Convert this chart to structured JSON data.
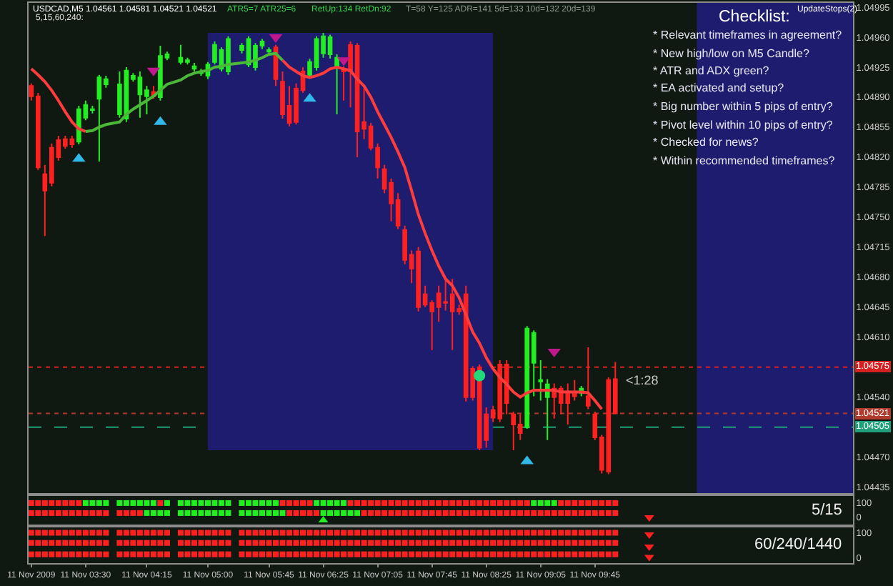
{
  "chart_data": [
    {
      "type": "candlestick",
      "title": "USDCAD,M5 1.04561 1.04581 1.04521 1.04521",
      "annotations": [
        "ATR5=7 ATR25=6",
        "RetUp:134 RetDn:92",
        "T=58 Y=125 ADR=141 5d=133 10d=132 20d=139",
        "5,15,60,240:",
        "Checklist:",
        "UpdateStops(2)",
        "* Relevant timeframes in agreement?",
        "* New high/low on M5 Candle?",
        "* ATR and ADX green?",
        "* EA activated and setup?",
        "* Big number within 5 pips of entry?",
        "* Pivot level within 10 pips of entry?",
        "* Checked for news?",
        "* Within recommended timeframes?",
        "<1:28"
      ],
      "x": [
        "2009-11-11T02:50",
        "2009-11-11T02:55",
        "2009-11-11T03:00",
        "2009-11-11T03:05",
        "2009-11-11T03:10",
        "2009-11-11T03:15",
        "2009-11-11T03:20",
        "2009-11-11T03:25",
        "2009-11-11T03:30",
        "2009-11-11T03:35",
        "2009-11-11T03:40",
        "2009-11-11T03:45",
        "2009-11-11T03:55",
        "2009-11-11T04:00",
        "2009-11-11T04:05",
        "2009-11-11T04:10",
        "2009-11-11T04:15",
        "2009-11-11T04:20",
        "2009-11-11T04:25",
        "2009-11-11T04:30",
        "2009-11-11T04:40",
        "2009-11-11T04:45",
        "2009-11-11T04:50",
        "2009-11-11T04:55",
        "2009-11-11T05:00",
        "2009-11-11T05:05",
        "2009-11-11T05:10",
        "2009-11-11T05:15",
        "2009-11-11T05:25",
        "2009-11-11T05:30",
        "2009-11-11T05:35",
        "2009-11-11T05:40",
        "2009-11-11T05:45",
        "2009-11-11T05:50",
        "2009-11-11T05:55",
        "2009-11-11T06:00",
        "2009-11-11T06:05",
        "2009-11-11T06:10",
        "2009-11-11T06:15",
        "2009-11-11T06:20",
        "2009-11-11T06:25",
        "2009-11-11T06:30",
        "2009-11-11T06:35",
        "2009-11-11T06:40",
        "2009-11-11T06:45",
        "2009-11-11T06:50",
        "2009-11-11T06:55",
        "2009-11-11T07:00",
        "2009-11-11T07:05",
        "2009-11-11T07:10",
        "2009-11-11T07:15",
        "2009-11-11T07:20",
        "2009-11-11T07:25",
        "2009-11-11T07:30",
        "2009-11-11T07:35",
        "2009-11-11T07:40",
        "2009-11-11T07:45",
        "2009-11-11T07:50",
        "2009-11-11T07:55",
        "2009-11-11T08:00",
        "2009-11-11T08:05",
        "2009-11-11T08:10",
        "2009-11-11T08:15",
        "2009-11-11T08:20",
        "2009-11-11T08:25",
        "2009-11-11T08:30",
        "2009-11-11T08:35",
        "2009-11-11T08:40",
        "2009-11-11T08:45",
        "2009-11-11T08:50",
        "2009-11-11T08:55",
        "2009-11-11T09:00",
        "2009-11-11T09:05",
        "2009-11-11T09:10",
        "2009-11-11T09:15",
        "2009-11-11T09:20",
        "2009-11-11T09:25",
        "2009-11-11T09:30",
        "2009-11-11T09:35",
        "2009-11-11T09:40",
        "2009-11-11T09:45",
        "2009-11-11T09:50",
        "2009-11-11T09:55",
        "2009-11-11T10:00"
      ],
      "ohlc": [
        [
          1.04903,
          1.04906,
          1.04886,
          1.04891
        ],
        [
          1.04891,
          1.04895,
          1.04805,
          1.04808
        ],
        [
          1.048,
          1.04811,
          1.04728,
          1.04781
        ],
        [
          1.04831,
          1.04836,
          1.04786,
          1.0479
        ],
        [
          1.0484,
          1.04845,
          1.04816,
          1.0482
        ],
        [
          1.04841,
          1.04845,
          1.0483,
          1.04833
        ],
        [
          1.04841,
          1.04845,
          1.04831,
          1.04835
        ],
        [
          1.04838,
          1.0488,
          1.04835,
          1.04876
        ],
        [
          1.04866,
          1.04886,
          1.04863,
          1.04881
        ],
        [
          1.04875,
          1.0488,
          1.04871,
          1.04876
        ],
        [
          1.04888,
          1.04916,
          1.04815,
          1.04913
        ],
        [
          1.04905,
          1.04915,
          1.04901,
          1.04911
        ],
        [
          1.0487,
          1.0492,
          1.04866,
          1.04905
        ],
        [
          1.04865,
          1.04925,
          1.04861,
          1.04921
        ],
        [
          1.04911,
          1.04918,
          1.04908,
          1.04915
        ],
        [
          1.04893,
          1.0492,
          1.04866,
          1.04913
        ],
        [
          1.04891,
          1.04903,
          1.0487,
          1.04898
        ],
        [
          1.04896,
          1.04903,
          1.04888,
          1.04891
        ],
        [
          1.0489,
          1.0495,
          1.04886,
          1.04938
        ],
        [
          1.04936,
          1.04943,
          1.04933,
          1.0494
        ],
        [
          1.04931,
          1.04951,
          1.04928,
          1.04936
        ],
        [
          1.04931,
          1.04936,
          1.04928,
          1.04933
        ],
        [
          1.04923,
          1.0493,
          1.0492,
          1.04926
        ],
        [
          1.04918,
          1.04923,
          1.04915,
          1.0492
        ],
        [
          1.04915,
          1.04931,
          1.04911,
          1.04928
        ],
        [
          1.04931,
          1.04955,
          1.04928,
          1.04951
        ],
        [
          1.04923,
          1.04948,
          1.0492,
          1.04945
        ],
        [
          1.0492,
          1.04961,
          1.04916,
          1.04958
        ],
        [
          1.04945,
          1.04953,
          1.04941,
          1.0495
        ],
        [
          1.04928,
          1.04961,
          1.04925,
          1.04958
        ],
        [
          1.04925,
          1.04953,
          1.04921,
          1.0495
        ],
        [
          1.0495,
          1.04958,
          1.04946,
          1.04955
        ],
        [
          1.04943,
          1.04948,
          1.0494,
          1.04945
        ],
        [
          1.04948,
          1.04951,
          1.04903,
          1.04911
        ],
        [
          1.04908,
          1.0492,
          1.04865,
          1.0487
        ],
        [
          1.0488,
          1.04903,
          1.04856,
          1.0486
        ],
        [
          1.049,
          1.04906,
          1.04858,
          1.04861
        ],
        [
          1.0492,
          1.04925,
          1.04895,
          1.04898
        ],
        [
          1.04916,
          1.04935,
          1.04913,
          1.04931
        ],
        [
          1.04925,
          1.04961,
          1.04921,
          1.04958
        ],
        [
          1.04941,
          1.04965,
          1.04936,
          1.04961
        ],
        [
          1.0494,
          1.04963,
          1.04935,
          1.0496
        ],
        [
          1.04925,
          1.0494,
          1.0487,
          1.04936
        ],
        [
          1.04923,
          1.04926,
          1.04886,
          1.0492
        ],
        [
          1.04951,
          1.04955,
          1.04878,
          1.0492
        ],
        [
          1.0495,
          1.04953,
          1.0482,
          1.0485
        ],
        [
          1.04861,
          1.049,
          1.04841,
          1.04853
        ],
        [
          1.04856,
          1.0486,
          1.04828,
          1.04831
        ],
        [
          1.04831,
          1.04836,
          1.04795,
          1.04808
        ],
        [
          1.04806,
          1.04811,
          1.04778,
          1.04783
        ],
        [
          1.0479,
          1.04795,
          1.04745,
          1.04766
        ],
        [
          1.0477,
          1.04778,
          1.04736,
          1.0474
        ],
        [
          1.04735,
          1.0474,
          1.04695,
          1.047
        ],
        [
          1.04706,
          1.04711,
          1.04673,
          1.0469
        ],
        [
          1.0471,
          1.04715,
          1.0464,
          1.04645
        ],
        [
          1.0466,
          1.0467,
          1.04645,
          1.04648
        ],
        [
          1.0465,
          1.04653,
          1.04595,
          1.0464
        ],
        [
          1.04661,
          1.0467,
          1.04628,
          1.04645
        ],
        [
          1.04651,
          1.04678,
          1.04641,
          1.0465
        ],
        [
          1.0466,
          1.04678,
          1.04595,
          1.0464
        ],
        [
          1.04643,
          1.04648,
          1.04636,
          1.0464
        ],
        [
          1.0466,
          1.0467,
          1.04535,
          1.0454
        ],
        [
          1.04573,
          1.04576,
          1.04536,
          1.0454
        ],
        [
          1.04575,
          1.04578,
          1.04478,
          1.04481
        ],
        [
          1.0452,
          1.04528,
          1.04481,
          1.0449
        ],
        [
          1.04525,
          1.0453,
          1.04511,
          1.04516
        ],
        [
          1.04578,
          1.04583,
          1.04511,
          1.04515
        ],
        [
          1.04578,
          1.04583,
          1.0452,
          1.04533
        ],
        [
          1.0452,
          1.04523,
          1.04478,
          1.04508
        ],
        [
          1.04508,
          1.0452,
          1.0449,
          1.04498
        ],
        [
          1.04505,
          1.04623,
          1.04503,
          1.0462
        ],
        [
          1.0458,
          1.04618,
          1.04541,
          1.04615
        ],
        [
          1.04558,
          1.04583,
          1.04536,
          1.0456
        ],
        [
          1.0454,
          1.04561,
          1.0449,
          1.04555
        ],
        [
          1.0455,
          1.04556,
          1.04515,
          1.0454
        ],
        [
          1.0455,
          1.04553,
          1.0452,
          1.04533
        ],
        [
          1.04546,
          1.04556,
          1.04508,
          1.04533
        ],
        [
          1.04546,
          1.0456,
          1.04536,
          1.04541
        ],
        [
          1.04545,
          1.04553,
          1.04541,
          1.0455
        ],
        [
          1.04541,
          1.04598,
          1.04526,
          1.0453
        ],
        [
          1.0452,
          1.04523,
          1.0449,
          1.04493
        ],
        [
          1.04493,
          1.04496,
          1.04451,
          1.04455
        ],
        [
          1.0456,
          1.04563,
          1.0445,
          1.04453
        ],
        [
          1.04561,
          1.04581,
          1.04521,
          1.04521
        ]
      ],
      "colors": [
        "#ff2020",
        "#ff2020",
        "#ff2020",
        "#ff2020",
        "#ff2020",
        "#ff2020",
        "#ff2020",
        "#22ee22",
        "#22ee22",
        "#22ee22",
        "#22ee22",
        "#22ee22",
        "#22ee22",
        "#22ee22",
        "#22ee22",
        "#22ee22",
        "#22ee22",
        "#ff2020",
        "#22ee22",
        "#22ee22",
        "#22ee22",
        "#22ee22",
        "#22ee22",
        "#22ee22",
        "#22ee22",
        "#22ee22",
        "#22ee22",
        "#22ee22",
        "#22ee22",
        "#22ee22",
        "#22ee22",
        "#22ee22",
        "#22ee22",
        "#ff2020",
        "#ff2020",
        "#ff2020",
        "#ff2020",
        "#ff2020",
        "#22ee22",
        "#22ee22",
        "#22ee22",
        "#22ee22",
        "#22ee22",
        "#ff2020",
        "#ff2020",
        "#ff2020",
        "#ff2020",
        "#ff2020",
        "#ff2020",
        "#ff2020",
        "#ff2020",
        "#ff2020",
        "#ff2020",
        "#ff2020",
        "#ff2020",
        "#ff2020",
        "#ff2020",
        "#ff2020",
        "#ff2020",
        "#ff2020",
        "#ff2020",
        "#ff2020",
        "#ff2020",
        "#ff2020",
        "#ff2020",
        "#ff2020",
        "#ff2020",
        "#ff2020",
        "#ff2020",
        "#ff2020",
        "#22ee22",
        "#22ee22",
        "#22ee22",
        "#22ee22",
        "#ff2020",
        "#ff2020",
        "#ff2020",
        "#ff2020",
        "#22ee22",
        "#ff2020",
        "#ff2020",
        "#ff2020",
        "#ff2020",
        "#ff2020"
      ],
      "series": [
        {
          "type": "line",
          "color": "#ff3c3c",
          "x": [
            "2009-11-11T02:50",
            "2009-11-11T02:55",
            "2009-11-11T03:00",
            "2009-11-11T03:05",
            "2009-11-11T03:10",
            "2009-11-11T03:15",
            "2009-11-11T03:20",
            "2009-11-11T03:25",
            "2009-11-11T03:30"
          ],
          "values": [
            1.04923,
            1.04916,
            1.04908,
            1.04898,
            1.04886,
            1.04873,
            1.04861,
            1.04853,
            1.0485
          ]
        },
        {
          "type": "line",
          "color": "#4cb83a",
          "x": [
            "2009-11-11T03:30",
            "2009-11-11T03:35",
            "2009-11-11T03:40",
            "2009-11-11T03:45",
            "2009-11-11T03:55",
            "2009-11-11T04:00",
            "2009-11-11T04:05",
            "2009-11-11T04:10",
            "2009-11-11T04:15",
            "2009-11-11T04:20",
            "2009-11-11T04:25",
            "2009-11-11T04:30",
            "2009-11-11T04:40",
            "2009-11-11T04:45",
            "2009-11-11T04:50",
            "2009-11-11T04:55",
            "2009-11-11T05:00",
            "2009-11-11T05:05",
            "2009-11-11T05:10",
            "2009-11-11T05:15",
            "2009-11-11T05:25",
            "2009-11-11T05:30",
            "2009-11-11T05:35",
            "2009-11-11T05:40",
            "2009-11-11T05:45",
            "2009-11-11T05:50",
            "2009-11-11T05:55"
          ],
          "values": [
            1.0485,
            1.04851,
            1.04855,
            1.04858,
            1.04861,
            1.0487,
            1.04876,
            1.04881,
            1.04886,
            1.04891,
            1.04898,
            1.04905,
            1.0491,
            1.04915,
            1.04918,
            1.0492,
            1.04921,
            1.04925,
            1.04926,
            1.04928,
            1.0493,
            1.04931,
            1.04933,
            1.04936,
            1.0494,
            1.04941,
            1.04933
          ]
        },
        {
          "type": "line",
          "color": "#ff3c3c",
          "x": [
            "2009-11-11T05:55",
            "2009-11-11T06:00",
            "2009-11-11T06:05",
            "2009-11-11T06:10",
            "2009-11-11T06:15",
            "2009-11-11T06:20",
            "2009-11-11T06:25",
            "2009-11-11T06:30",
            "2009-11-11T06:35",
            "2009-11-11T06:40",
            "2009-11-11T06:45",
            "2009-11-11T06:50",
            "2009-11-11T06:55",
            "2009-11-11T07:00",
            "2009-11-11T07:05",
            "2009-11-11T07:10",
            "2009-11-11T07:15",
            "2009-11-11T07:20",
            "2009-11-11T07:25",
            "2009-11-11T07:30",
            "2009-11-11T07:35",
            "2009-11-11T07:40",
            "2009-11-11T07:45",
            "2009-11-11T07:50",
            "2009-11-11T07:55",
            "2009-11-11T08:00",
            "2009-11-11T08:05",
            "2009-11-11T08:10",
            "2009-11-11T08:15",
            "2009-11-11T08:20",
            "2009-11-11T08:25",
            "2009-11-11T08:30",
            "2009-11-11T08:35",
            "2009-11-11T08:40",
            "2009-11-11T08:45",
            "2009-11-11T08:50",
            "2009-11-11T08:55",
            "2009-11-11T09:00",
            "2009-11-11T09:05",
            "2009-11-11T09:10",
            "2009-11-11T09:15",
            "2009-11-11T09:20",
            "2009-11-11T09:25",
            "2009-11-11T09:30",
            "2009-11-11T09:35",
            "2009-11-11T09:40",
            "2009-11-11T09:45",
            "2009-11-11T09:50"
          ],
          "values": [
            1.04933,
            1.04925,
            1.0492,
            1.04915,
            1.04913,
            1.04915,
            1.04918,
            1.04923,
            1.04925,
            1.04923,
            1.04921,
            1.04911,
            1.04903,
            1.0489,
            1.04873,
            1.04858,
            1.04843,
            1.04826,
            1.04808,
            1.04781,
            1.04753,
            1.04731,
            1.04711,
            1.04693,
            1.04678,
            1.0467,
            1.04656,
            1.04636,
            1.04616,
            1.04603,
            1.04586,
            1.04573,
            1.04563,
            1.04555,
            1.04546,
            1.0454,
            1.04545,
            1.04548,
            1.04548,
            1.04548,
            1.04548,
            1.04546,
            1.04546,
            1.04546,
            1.04546,
            1.04545,
            1.04536,
            1.04526
          ]
        },
        {
          "type": "scatter",
          "marker": "triangle",
          "color": "#30b8e8",
          "x": [
            "2009-11-11T03:25",
            "2009-11-11T04:25",
            "2009-11-11T06:15",
            "2009-11-11T08:55"
          ],
          "values": [
            1.04818,
            1.04861,
            1.04888,
            1.04465
          ]
        },
        {
          "type": "scatter",
          "marker": "triangle-down",
          "color": "#c0188c",
          "x": [
            "2009-11-11T04:20",
            "2009-11-11T05:50",
            "2009-11-11T06:40",
            "2009-11-11T09:15"
          ],
          "values": [
            1.04921,
            1.0496,
            1.04933,
            1.04593
          ]
        },
        {
          "type": "scatter",
          "marker": "circle",
          "color": "#22d878",
          "x": [
            "2009-11-11T08:20"
          ],
          "values": [
            1.04565
          ]
        }
      ],
      "xlim": [
        "2009-11-11T02:48",
        "2009-11-11T12:55"
      ],
      "ylim": [
        1.04428,
        1.05
      ],
      "yticks": [
        1.04995,
        {
          "value": 1.0496,
          "label": "1.04960"
        },
        1.04925,
        {
          "value": 1.0489,
          "label": "1.04890"
        },
        1.04855,
        {
          "value": 1.0482,
          "label": "1.04820"
        },
        1.04785,
        {
          "value": 1.0475,
          "label": "1.04750"
        },
        1.04715,
        {
          "value": 1.0468,
          "label": "1.04680"
        },
        1.04645,
        {
          "value": 1.0461,
          "label": "1.04610"
        },
        {
          "value": 1.0454,
          "label": "1.04540"
        },
        {
          "value": 1.0447,
          "label": "1.04470"
        },
        1.04435
      ],
      "ref_lines": [
        {
          "axis": "y",
          "value": 1.04575,
          "label": "1.04575",
          "color": "#d42020",
          "line_style": "dotted"
        },
        {
          "axis": "y",
          "value": 1.04521,
          "label": "1.04521",
          "color": "#b03a2e",
          "line_style": "dotted"
        },
        {
          "axis": "y",
          "value": 1.04505,
          "label": "1.04505",
          "color": "#1fa07a",
          "line_style": "dashed"
        }
      ],
      "bands": [
        {
          "axis": "x",
          "from": "2009-11-11T05:00",
          "to": "2009-11-11T08:30",
          "color": "#1e1c6e"
        },
        {
          "axis": "x",
          "from": "2009-11-11T11:00",
          "to": "2009-11-11T12:55",
          "color": "#1e1c6e"
        }
      ],
      "tick_labels": "y"
    },
    {
      "type": "scatter",
      "title": "5/15",
      "marker": "square",
      "x": [
        "2009-11-11T02:50",
        "2009-11-11T02:55",
        "2009-11-11T03:00",
        "2009-11-11T03:05",
        "2009-11-11T03:10",
        "2009-11-11T03:15",
        "2009-11-11T03:20",
        "2009-11-11T03:25",
        "2009-11-11T03:30",
        "2009-11-11T03:35",
        "2009-11-11T03:40",
        "2009-11-11T03:45",
        "2009-11-11T03:55",
        "2009-11-11T04:00",
        "2009-11-11T04:05",
        "2009-11-11T04:10",
        "2009-11-11T04:15",
        "2009-11-11T04:20",
        "2009-11-11T04:25",
        "2009-11-11T04:30",
        "2009-11-11T04:40",
        "2009-11-11T04:45",
        "2009-11-11T04:50",
        "2009-11-11T04:55",
        "2009-11-11T05:00",
        "2009-11-11T05:05",
        "2009-11-11T05:10",
        "2009-11-11T05:15",
        "2009-11-11T05:25",
        "2009-11-11T05:30",
        "2009-11-11T05:35",
        "2009-11-11T05:40",
        "2009-11-11T05:45",
        "2009-11-11T05:50",
        "2009-11-11T05:55",
        "2009-11-11T06:00",
        "2009-11-11T06:05",
        "2009-11-11T06:10",
        "2009-11-11T06:15",
        "2009-11-11T06:20",
        "2009-11-11T06:25",
        "2009-11-11T06:30",
        "2009-11-11T06:35",
        "2009-11-11T06:40",
        "2009-11-11T06:45",
        "2009-11-11T06:50",
        "2009-11-11T06:55",
        "2009-11-11T07:00",
        "2009-11-11T07:05",
        "2009-11-11T07:10",
        "2009-11-11T07:15",
        "2009-11-11T07:20",
        "2009-11-11T07:25",
        "2009-11-11T07:30",
        "2009-11-11T07:35",
        "2009-11-11T07:40",
        "2009-11-11T07:45",
        "2009-11-11T07:50",
        "2009-11-11T07:55",
        "2009-11-11T08:00",
        "2009-11-11T08:05",
        "2009-11-11T08:10",
        "2009-11-11T08:15",
        "2009-11-11T08:20",
        "2009-11-11T08:25",
        "2009-11-11T08:30",
        "2009-11-11T08:35",
        "2009-11-11T08:40",
        "2009-11-11T08:45",
        "2009-11-11T08:50",
        "2009-11-11T08:55",
        "2009-11-11T09:00",
        "2009-11-11T09:05",
        "2009-11-11T09:10",
        "2009-11-11T09:15",
        "2009-11-11T09:20",
        "2009-11-11T09:25",
        "2009-11-11T09:30",
        "2009-11-11T09:35",
        "2009-11-11T09:40",
        "2009-11-11T09:45",
        "2009-11-11T09:50",
        "2009-11-11T09:55",
        "2009-11-11T10:00"
      ],
      "series": [
        {
          "values": [
            100,
            100,
            100,
            100,
            100,
            100,
            100,
            100,
            100,
            100,
            100,
            100,
            100,
            100,
            100,
            100,
            100,
            100,
            100,
            100,
            100,
            100,
            100,
            100,
            100,
            100,
            100,
            100,
            100,
            100,
            100,
            100,
            100,
            100,
            100,
            100,
            100,
            100,
            100,
            100,
            100,
            100,
            100,
            100,
            100,
            100,
            100,
            100,
            100,
            100,
            100,
            100,
            100,
            100,
            100,
            100,
            100,
            100,
            100,
            100,
            100,
            100,
            100,
            100,
            100,
            100,
            100,
            100,
            100,
            100,
            100,
            100,
            100,
            100,
            100,
            100,
            100,
            100,
            100,
            100,
            100,
            100,
            100,
            100
          ],
          "colors": [
            "#ff2020",
            "#ff2020",
            "#ff2020",
            "#ff2020",
            "#ff2020",
            "#ff2020",
            "#ff2020",
            "#ff2020",
            "#22ee22",
            "#22ee22",
            "#22ee22",
            "#22ee22",
            "#22ee22",
            "#22ee22",
            "#22ee22",
            "#22ee22",
            "#22ee22",
            "#22ee22",
            "#ff2020",
            "#22ee22",
            "#22ee22",
            "#22ee22",
            "#22ee22",
            "#22ee22",
            "#22ee22",
            "#22ee22",
            "#22ee22",
            "#22ee22",
            "#22ee22",
            "#22ee22",
            "#22ee22",
            "#22ee22",
            "#22ee22",
            "#22ee22",
            "#ff2020",
            "#ff2020",
            "#ff2020",
            "#ff2020",
            "#ff2020",
            "#22ee22",
            "#22ee22",
            "#22ee22",
            "#22ee22",
            "#22ee22",
            "#ff2020",
            "#ff2020",
            "#ff2020",
            "#ff2020",
            "#ff2020",
            "#ff2020",
            "#ff2020",
            "#ff2020",
            "#ff2020",
            "#ff2020",
            "#ff2020",
            "#ff2020",
            "#ff2020",
            "#ff2020",
            "#ff2020",
            "#ff2020",
            "#ff2020",
            "#ff2020",
            "#ff2020",
            "#ff2020",
            "#ff2020",
            "#ff2020",
            "#ff2020",
            "#ff2020",
            "#ff2020",
            "#ff2020",
            "#ff2020",
            "#22ee22",
            "#22ee22",
            "#22ee22",
            "#22ee22",
            "#ff2020",
            "#ff2020",
            "#ff2020",
            "#ff2020",
            "#ff2020",
            "#ff2020",
            "#ff2020",
            "#ff2020",
            "#ff2020"
          ]
        },
        {
          "values": [
            30,
            30,
            30,
            30,
            30,
            30,
            30,
            30,
            30,
            30,
            30,
            30,
            30,
            30,
            30,
            30,
            30,
            30,
            30,
            30,
            30,
            30,
            30,
            30,
            30,
            30,
            30,
            30,
            30,
            30,
            30,
            30,
            30,
            30,
            30,
            30,
            30,
            30,
            30,
            30,
            30,
            30,
            30,
            30,
            30,
            30,
            30,
            30,
            30,
            30,
            30,
            30,
            30,
            30,
            30,
            30,
            30,
            30,
            30,
            30,
            30,
            30,
            30,
            30,
            30,
            30,
            30,
            30,
            30,
            30,
            30,
            30,
            30,
            30,
            30,
            30,
            30,
            30,
            30,
            30,
            30,
            30,
            30,
            30
          ],
          "colors": [
            "#ff2020",
            "#ff2020",
            "#ff2020",
            "#ff2020",
            "#ff2020",
            "#ff2020",
            "#ff2020",
            "#ff2020",
            "#ff2020",
            "#ff2020",
            "#ff2020",
            "#ff2020",
            "#ff2020",
            "#ff2020",
            "#ff2020",
            "#ff2020",
            "#22ee22",
            "#22ee22",
            "#22ee22",
            "#22ee22",
            "#22ee22",
            "#22ee22",
            "#22ee22",
            "#22ee22",
            "#22ee22",
            "#22ee22",
            "#22ee22",
            "#22ee22",
            "#22ee22",
            "#22ee22",
            "#22ee22",
            "#22ee22",
            "#22ee22",
            "#22ee22",
            "#22ee22",
            "#ff2020",
            "#ff2020",
            "#ff2020",
            "#ff2020",
            "#ff2020",
            "#22ee22",
            "#22ee22",
            "#22ee22",
            "#22ee22",
            "#22ee22",
            "#22ee22",
            "#ff2020",
            "#ff2020",
            "#ff2020",
            "#ff2020",
            "#ff2020",
            "#ff2020",
            "#ff2020",
            "#ff2020",
            "#ff2020",
            "#ff2020",
            "#ff2020",
            "#ff2020",
            "#ff2020",
            "#ff2020",
            "#ff2020",
            "#ff2020",
            "#ff2020",
            "#ff2020",
            "#ff2020",
            "#ff2020",
            "#ff2020",
            "#ff2020",
            "#ff2020",
            "#ff2020",
            "#ff2020",
            "#ff2020",
            "#ff2020",
            "#ff2020",
            "#ff2020",
            "#ff2020",
            "#ff2020",
            "#ff2020",
            "#ff2020",
            "#ff2020",
            "#ff2020",
            "#ff2020",
            "#ff2020",
            "#ff2020"
          ]
        },
        {
          "marker": "triangle-down",
          "color": "#ff2020",
          "x": [
            "2009-11-11T10:25"
          ],
          "values": [
            0
          ]
        },
        {
          "marker": "triangle",
          "color": "#22ee22",
          "x": [
            "2009-11-11T06:25"
          ],
          "values": [
            -20
          ]
        }
      ],
      "xlim": [
        "2009-11-11T02:48",
        "2009-11-11T12:55"
      ],
      "ylim": [
        -50,
        150
      ],
      "yticks": [
        0,
        100
      ],
      "tick_labels": "y"
    },
    {
      "type": "scatter",
      "title": "60/240/1440",
      "marker": "square",
      "x": [
        "2009-11-11T02:50",
        "2009-11-11T02:55",
        "2009-11-11T03:00",
        "2009-11-11T03:05",
        "2009-11-11T03:10",
        "2009-11-11T03:15",
        "2009-11-11T03:20",
        "2009-11-11T03:25",
        "2009-11-11T03:30",
        "2009-11-11T03:35",
        "2009-11-11T03:40",
        "2009-11-11T03:45",
        "2009-11-11T03:55",
        "2009-11-11T04:00",
        "2009-11-11T04:05",
        "2009-11-11T04:10",
        "2009-11-11T04:15",
        "2009-11-11T04:20",
        "2009-11-11T04:25",
        "2009-11-11T04:30",
        "2009-11-11T04:40",
        "2009-11-11T04:45",
        "2009-11-11T04:50",
        "2009-11-11T04:55",
        "2009-11-11T05:00",
        "2009-11-11T05:05",
        "2009-11-11T05:10",
        "2009-11-11T05:15",
        "2009-11-11T05:25",
        "2009-11-11T05:30",
        "2009-11-11T05:35",
        "2009-11-11T05:40",
        "2009-11-11T05:45",
        "2009-11-11T05:50",
        "2009-11-11T05:55",
        "2009-11-11T06:00",
        "2009-11-11T06:05",
        "2009-11-11T06:10",
        "2009-11-11T06:15",
        "2009-11-11T06:20",
        "2009-11-11T06:25",
        "2009-11-11T06:30",
        "2009-11-11T06:35",
        "2009-11-11T06:40",
        "2009-11-11T06:45",
        "2009-11-11T06:50",
        "2009-11-11T06:55",
        "2009-11-11T07:00",
        "2009-11-11T07:05",
        "2009-11-11T07:10",
        "2009-11-11T07:15",
        "2009-11-11T07:20",
        "2009-11-11T07:25",
        "2009-11-11T07:30",
        "2009-11-11T07:35",
        "2009-11-11T07:40",
        "2009-11-11T07:45",
        "2009-11-11T07:50",
        "2009-11-11T07:55",
        "2009-11-11T08:00",
        "2009-11-11T08:05",
        "2009-11-11T08:10",
        "2009-11-11T08:15",
        "2009-11-11T08:20",
        "2009-11-11T08:25",
        "2009-11-11T08:30",
        "2009-11-11T08:35",
        "2009-11-11T08:40",
        "2009-11-11T08:45",
        "2009-11-11T08:50",
        "2009-11-11T08:55",
        "2009-11-11T09:00",
        "2009-11-11T09:05",
        "2009-11-11T09:10",
        "2009-11-11T09:15",
        "2009-11-11T09:20",
        "2009-11-11T09:25",
        "2009-11-11T09:30",
        "2009-11-11T09:35",
        "2009-11-11T09:40",
        "2009-11-11T09:45",
        "2009-11-11T09:50",
        "2009-11-11T09:55",
        "2009-11-11T10:00"
      ],
      "series": [
        {
          "color": "#ff2020",
          "values": [
            100,
            100,
            100,
            100,
            100,
            100,
            100,
            100,
            100,
            100,
            100,
            100,
            100,
            100,
            100,
            100,
            100,
            100,
            100,
            100,
            100,
            100,
            100,
            100,
            100,
            100,
            100,
            100,
            100,
            100,
            100,
            100,
            100,
            100,
            100,
            100,
            100,
            100,
            100,
            100,
            100,
            100,
            100,
            100,
            100,
            100,
            100,
            100,
            100,
            100,
            100,
            100,
            100,
            100,
            100,
            100,
            100,
            100,
            100,
            100,
            100,
            100,
            100,
            100,
            100,
            100,
            100,
            100,
            100,
            100,
            100,
            100,
            100,
            100,
            100,
            100,
            100,
            100,
            100,
            100,
            100,
            100,
            100,
            100
          ]
        },
        {
          "color": "#ff2020",
          "values": [
            60,
            60,
            60,
            60,
            60,
            60,
            60,
            60,
            60,
            60,
            60,
            60,
            60,
            60,
            60,
            60,
            60,
            60,
            60,
            60,
            60,
            60,
            60,
            60,
            60,
            60,
            60,
            60,
            60,
            60,
            60,
            60,
            60,
            60,
            60,
            60,
            60,
            60,
            60,
            60,
            60,
            60,
            60,
            60,
            60,
            60,
            60,
            60,
            60,
            60,
            60,
            60,
            60,
            60,
            60,
            60,
            60,
            60,
            60,
            60,
            60,
            60,
            60,
            60,
            60,
            60,
            60,
            60,
            60,
            60,
            60,
            60,
            60,
            60,
            60,
            60,
            60,
            60,
            60,
            60,
            60,
            60,
            60,
            60
          ]
        },
        {
          "color": "#ff2020",
          "values": [
            15,
            15,
            15,
            15,
            15,
            15,
            15,
            15,
            15,
            15,
            15,
            15,
            15,
            15,
            15,
            15,
            15,
            15,
            15,
            15,
            15,
            15,
            15,
            15,
            15,
            15,
            15,
            15,
            15,
            15,
            15,
            15,
            15,
            15,
            15,
            15,
            15,
            15,
            15,
            15,
            15,
            15,
            15,
            15,
            15,
            15,
            15,
            15,
            15,
            15,
            15,
            15,
            15,
            15,
            15,
            15,
            15,
            15,
            15,
            15,
            15,
            15,
            15,
            15,
            15,
            15,
            15,
            15,
            15,
            15,
            15,
            15,
            15,
            15,
            15,
            15,
            15,
            15,
            15,
            15,
            15,
            15,
            15,
            15
          ]
        },
        {
          "marker": "triangle-down",
          "color": "#ff2020",
          "x": [
            "2009-11-11T10:25",
            "2009-11-11T10:25",
            "2009-11-11T10:25"
          ],
          "values": [
            93,
            45,
            4
          ]
        }
      ],
      "xlim": [
        "2009-11-11T02:48",
        "2009-11-11T12:55"
      ],
      "ylim": [
        -20,
        122
      ],
      "yticks": [
        0,
        100
      ],
      "xticks": [
        {
          "value": "2009-11-11T02:50",
          "label": "11 Nov 2009"
        },
        {
          "value": "2009-11-11T03:30",
          "label": "11 Nov 03:30"
        },
        {
          "value": "2009-11-11T04:15",
          "label": "11 Nov 04:15"
        },
        {
          "value": "2009-11-11T05:00",
          "label": "11 Nov 05:00"
        },
        {
          "value": "2009-11-11T05:45",
          "label": "11 Nov 05:45"
        },
        {
          "value": "2009-11-11T06:25",
          "label": "11 Nov 06:25"
        },
        {
          "value": "2009-11-11T07:05",
          "label": "11 Nov 07:05"
        },
        {
          "value": "2009-11-11T07:45",
          "label": "11 Nov 07:45"
        },
        {
          "value": "2009-11-11T08:25",
          "label": "11 Nov 08:25"
        },
        {
          "value": "2009-11-11T09:05",
          "label": "11 Nov 09:05"
        },
        {
          "value": "2009-11-11T09:45",
          "label": "11 Nov 09:45"
        }
      ]
    }
  ]
}
